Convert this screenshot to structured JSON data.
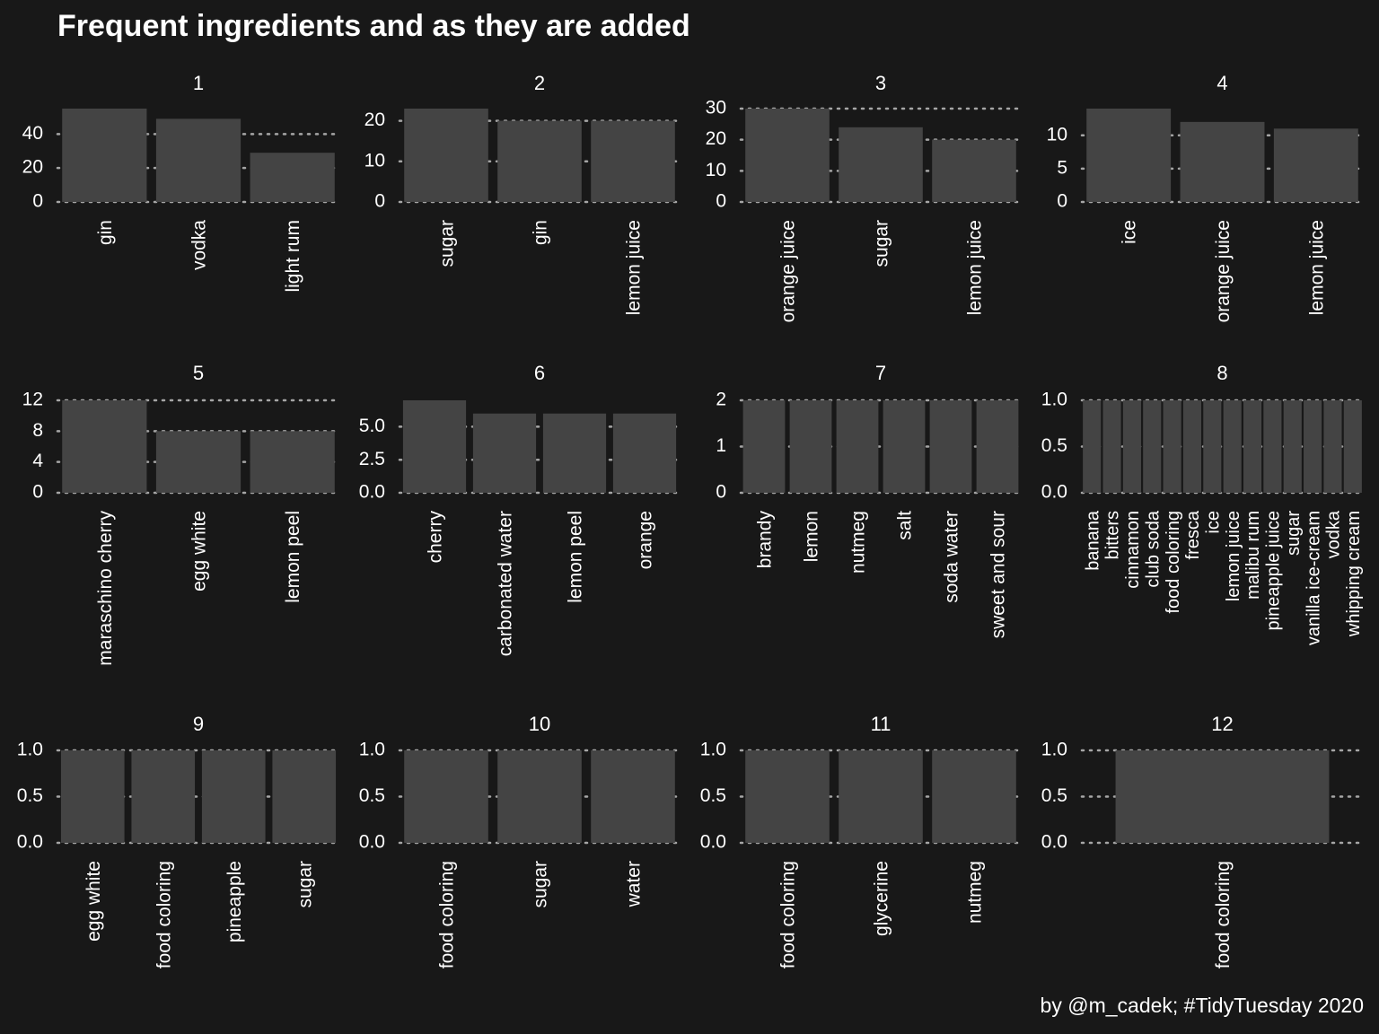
{
  "title": "Frequent ingredients and as they are added",
  "caption": "by @m_cadek; #TidyTuesday 2020",
  "colors": {
    "background": "#181818",
    "bar": "#444444",
    "grid": "#a6a6a6",
    "text": "#ffffff"
  },
  "chart_data": {
    "type": "bar",
    "facet_type": "faceted bar chart (12 panels)",
    "grid": "horizontal dotted",
    "panels": [
      {
        "label": "1",
        "categories": [
          "gin",
          "vodka",
          "light rum"
        ],
        "values": [
          55,
          49,
          29
        ],
        "ylim": [
          0,
          55
        ],
        "yticks": [
          0,
          20,
          40
        ],
        "ytick_labels": [
          "0",
          "20",
          "40"
        ]
      },
      {
        "label": "2",
        "categories": [
          "sugar",
          "gin",
          "lemon juice"
        ],
        "values": [
          23,
          20,
          20
        ],
        "ylim": [
          0,
          23
        ],
        "yticks": [
          0,
          10,
          20
        ],
        "ytick_labels": [
          "0",
          "10",
          "20"
        ]
      },
      {
        "label": "3",
        "categories": [
          "orange juice",
          "sugar",
          "lemon juice"
        ],
        "values": [
          30,
          24,
          20
        ],
        "ylim": [
          0,
          30
        ],
        "yticks": [
          0,
          10,
          20,
          30
        ],
        "ytick_labels": [
          "0",
          "10",
          "20",
          "30"
        ]
      },
      {
        "label": "4",
        "categories": [
          "ice",
          "orange juice",
          "lemon juice"
        ],
        "values": [
          14,
          12,
          11
        ],
        "ylim": [
          0,
          14
        ],
        "yticks": [
          0,
          5,
          10
        ],
        "ytick_labels": [
          "0",
          "5",
          "10"
        ]
      },
      {
        "label": "5",
        "categories": [
          "maraschino cherry",
          "egg white",
          "lemon peel"
        ],
        "values": [
          12,
          8,
          8
        ],
        "ylim": [
          0,
          12
        ],
        "yticks": [
          0,
          4,
          8,
          12
        ],
        "ytick_labels": [
          "0",
          "4",
          "8",
          "12"
        ]
      },
      {
        "label": "6",
        "categories": [
          "cherry",
          "carbonated water",
          "lemon peel",
          "orange"
        ],
        "values": [
          7,
          6,
          6,
          6
        ],
        "ylim": [
          0,
          7
        ],
        "yticks": [
          0,
          2.5,
          5
        ],
        "ytick_labels": [
          "0.0",
          "2.5",
          "5.0"
        ]
      },
      {
        "label": "7",
        "categories": [
          "brandy",
          "lemon",
          "nutmeg",
          "salt",
          "soda water",
          "sweet and sour"
        ],
        "values": [
          2,
          2,
          2,
          2,
          2,
          2
        ],
        "ylim": [
          0,
          2
        ],
        "yticks": [
          0,
          1,
          2
        ],
        "ytick_labels": [
          "0",
          "1",
          "2"
        ]
      },
      {
        "label": "8",
        "categories": [
          "banana",
          "bitters",
          "cinnamon",
          "club soda",
          "food coloring",
          "fresca",
          "ice",
          "lemon juice",
          "malibu rum",
          "pineapple juice",
          "sugar",
          "vanilla ice-cream",
          "vodka",
          "whipping cream"
        ],
        "values": [
          1,
          1,
          1,
          1,
          1,
          1,
          1,
          1,
          1,
          1,
          1,
          1,
          1,
          1
        ],
        "ylim": [
          0,
          1
        ],
        "yticks": [
          0,
          0.5,
          1
        ],
        "ytick_labels": [
          "0.0",
          "0.5",
          "1.0"
        ]
      },
      {
        "label": "9",
        "categories": [
          "egg white",
          "food coloring",
          "pineapple",
          "sugar"
        ],
        "values": [
          1,
          1,
          1,
          1
        ],
        "ylim": [
          0,
          1
        ],
        "yticks": [
          0,
          0.5,
          1
        ],
        "ytick_labels": [
          "0.0",
          "0.5",
          "1.0"
        ]
      },
      {
        "label": "10",
        "categories": [
          "food coloring",
          "sugar",
          "water"
        ],
        "values": [
          1,
          1,
          1
        ],
        "ylim": [
          0,
          1
        ],
        "yticks": [
          0,
          0.5,
          1
        ],
        "ytick_labels": [
          "0.0",
          "0.5",
          "1.0"
        ]
      },
      {
        "label": "11",
        "categories": [
          "food coloring",
          "glycerine",
          "nutmeg"
        ],
        "values": [
          1,
          1,
          1
        ],
        "ylim": [
          0,
          1
        ],
        "yticks": [
          0,
          0.5,
          1
        ],
        "ytick_labels": [
          "0.0",
          "0.5",
          "1.0"
        ]
      },
      {
        "label": "12",
        "categories": [
          "food coloring"
        ],
        "values": [
          1
        ],
        "ylim": [
          0,
          1
        ],
        "yticks": [
          0,
          0.5,
          1
        ],
        "ytick_labels": [
          "0.0",
          "0.5",
          "1.0"
        ]
      }
    ]
  }
}
